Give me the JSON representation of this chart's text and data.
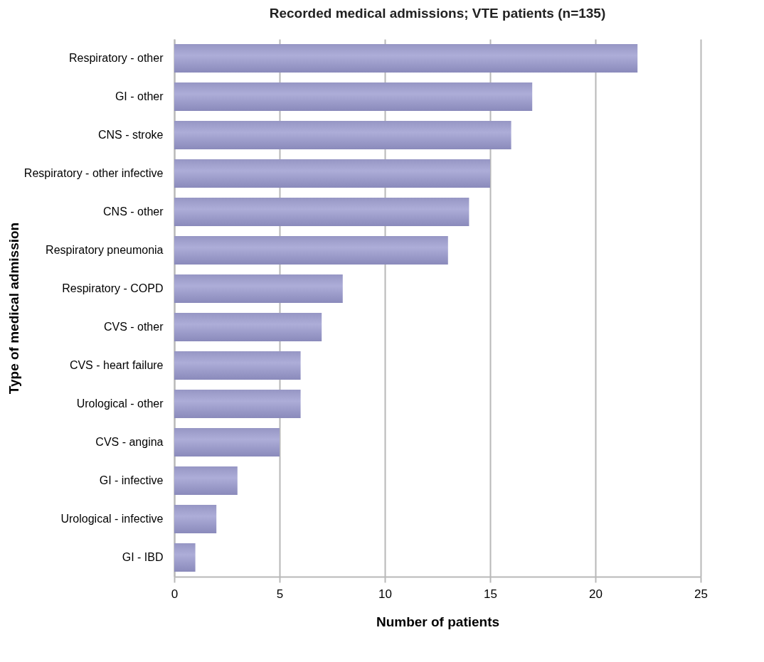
{
  "chart_data": {
    "type": "bar",
    "orientation": "horizontal",
    "title": "Recorded medical admissions; VTE patients (n=135)",
    "xlabel": "Number of patients",
    "ylabel": "Type of medical admission",
    "categories": [
      "Respiratory - other",
      "GI - other",
      "CNS - stroke",
      "Respiratory - other infective",
      "CNS - other",
      "Respiratory pneumonia",
      "Respiratory - COPD",
      "CVS - other",
      "CVS - heart failure",
      "Urological - other",
      "CVS - angina",
      "GI - infective",
      "Urological - infective",
      "GI - IBD"
    ],
    "values": [
      22,
      17,
      16,
      15,
      14,
      13,
      8,
      7,
      6,
      6,
      5,
      3,
      2,
      1
    ],
    "color": "#adadd8",
    "xlim": [
      0,
      25
    ],
    "xticks": [
      0,
      5,
      10,
      15,
      20,
      25
    ],
    "grid": "x"
  }
}
